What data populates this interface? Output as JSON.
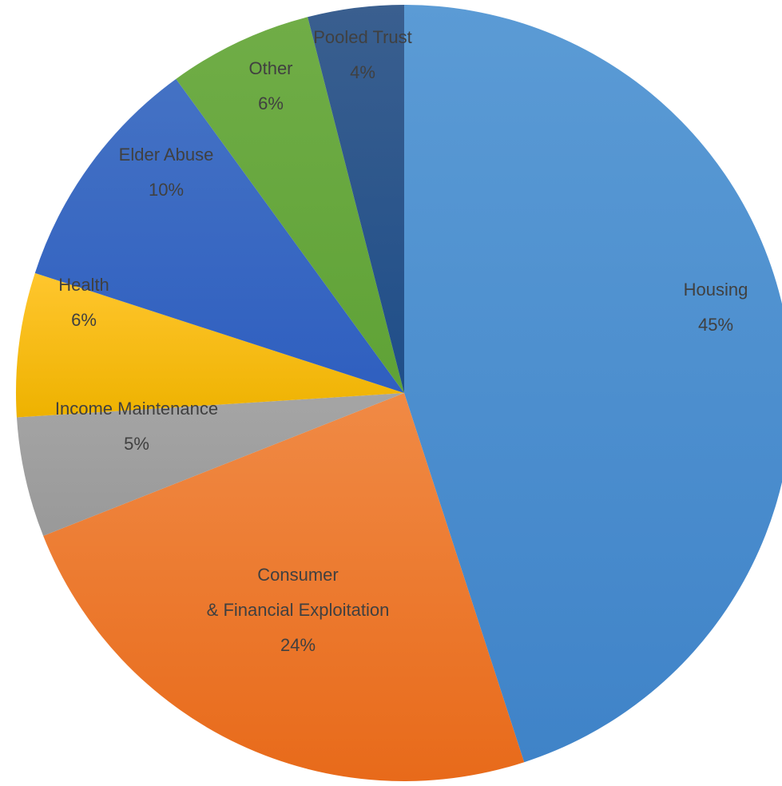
{
  "chart_data": {
    "type": "pie",
    "start_angle_deg": 0,
    "direction": "clockwise",
    "slices": [
      {
        "label": "Housing",
        "label_lines": [
          "Housing"
        ],
        "value": 45,
        "display": "45%",
        "color": "#5b9bd5",
        "color_dark": "#3f83c8"
      },
      {
        "label": "Consumer & Financial Exploitation",
        "label_lines": [
          "Consumer",
          "& Financial Exploitation"
        ],
        "value": 24,
        "display": "24%",
        "color": "#f08a45",
        "color_dark": "#e86a1a"
      },
      {
        "label": "Income Maintenance",
        "label_lines": [
          "Income Maintenance"
        ],
        "value": 5,
        "display": "5%",
        "color": "#a5a5a5",
        "color_dark": "#999999"
      },
      {
        "label": "Health",
        "label_lines": [
          "Health"
        ],
        "value": 6,
        "display": "6%",
        "color": "#ffc62e",
        "color_dark": "#eeb200"
      },
      {
        "label": "Elder Abuse",
        "label_lines": [
          "Elder Abuse"
        ],
        "value": 10,
        "display": "10%",
        "color": "#4472c4",
        "color_dark": "#2f5fc0"
      },
      {
        "label": "Other",
        "label_lines": [
          "Other"
        ],
        "value": 6,
        "display": "6%",
        "color": "#70ad47",
        "color_dark": "#5fa236"
      },
      {
        "label": "Pooled Trust",
        "label_lines": [
          "Pooled Trust"
        ],
        "value": 4,
        "display": "4%",
        "color": "#3a5f8f",
        "color_dark": "#1f4e89"
      }
    ]
  }
}
